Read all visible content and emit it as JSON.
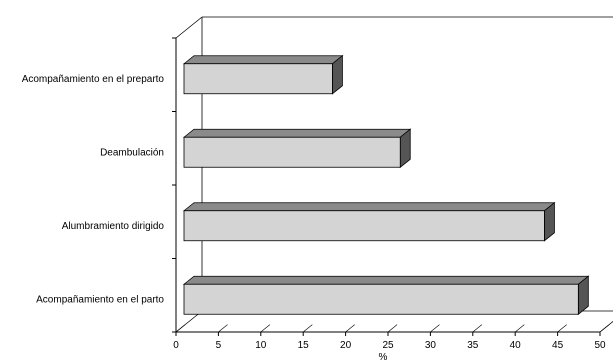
{
  "chart_data": {
    "type": "bar",
    "orientation": "horizontal",
    "style": "3d",
    "categories": [
      "Acompañamiento en el preparto",
      "Deambulación",
      "Alumbramiento dirigido",
      "Acompañamiento en el parto"
    ],
    "values": [
      17.5,
      25.5,
      42.5,
      46.5
    ],
    "xlabel": "%",
    "ylabel": "",
    "xlim": [
      0,
      50
    ],
    "xticks": [
      0,
      5,
      10,
      15,
      20,
      25,
      30,
      35,
      40,
      45,
      50
    ],
    "grid": false,
    "legend": "none",
    "colors": {
      "bar_face": "#d4d4d4",
      "bar_top": "#8a8a8a",
      "bar_side": "#555555",
      "axis": "#000000"
    }
  }
}
